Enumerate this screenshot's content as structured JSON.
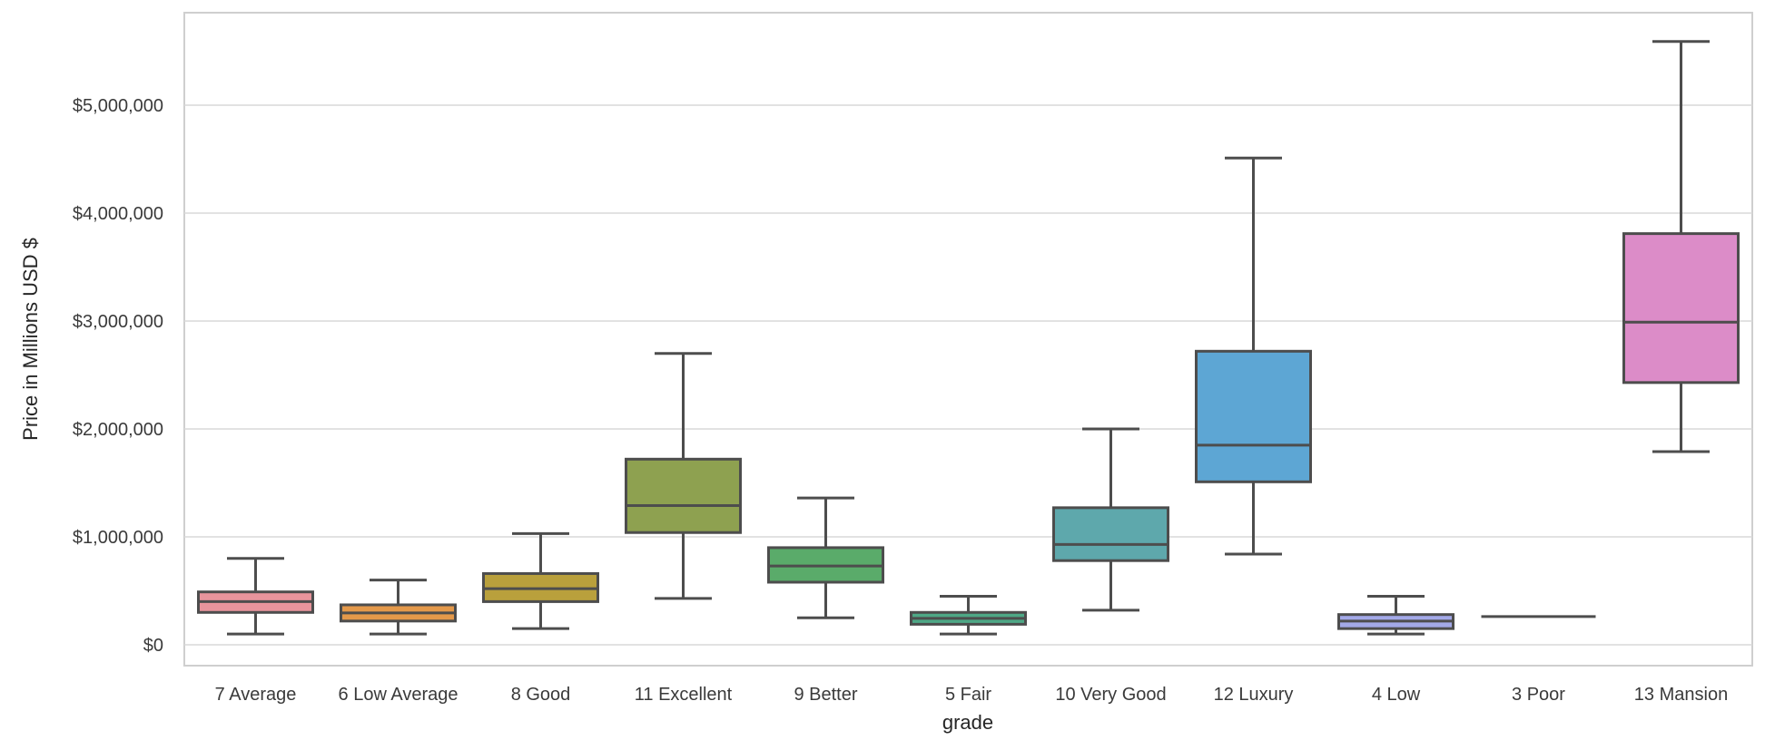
{
  "chart_data": {
    "type": "box",
    "title": "",
    "xlabel": "grade",
    "ylabel": "Price in Millions USD $",
    "ylim": [
      -200000,
      5850000
    ],
    "y_ticks": [
      0,
      1000000,
      2000000,
      3000000,
      4000000,
      5000000
    ],
    "y_tick_labels": [
      "$0",
      "$1,000,000",
      "$2,000,000",
      "$3,000,000",
      "$4,000,000",
      "$5,000,000"
    ],
    "grid": true,
    "legend": "none",
    "categories": [
      "7 Average",
      "6 Low Average",
      "8 Good",
      "11 Excellent",
      "9 Better",
      "5 Fair",
      "10 Very Good",
      "12 Luxury",
      "4 Low",
      "3 Poor",
      "13 Mansion"
    ],
    "boxes": [
      {
        "category": "7 Average",
        "whisker_low": 100000,
        "q1": 300000,
        "median": 400000,
        "q3": 490000,
        "whisker_high": 800000,
        "color": "#e8949c"
      },
      {
        "category": "6 Low Average",
        "whisker_low": 100000,
        "q1": 220000,
        "median": 295000,
        "q3": 370000,
        "whisker_high": 600000,
        "color": "#e4994a"
      },
      {
        "category": "8 Good",
        "whisker_low": 150000,
        "q1": 400000,
        "median": 520000,
        "q3": 660000,
        "whisker_high": 1030000,
        "color": "#b9a03c"
      },
      {
        "category": "11 Excellent",
        "whisker_low": 430000,
        "q1": 1040000,
        "median": 1290000,
        "q3": 1720000,
        "whisker_high": 2700000,
        "color": "#8ea150"
      },
      {
        "category": "9 Better",
        "whisker_low": 250000,
        "q1": 580000,
        "median": 730000,
        "q3": 900000,
        "whisker_high": 1360000,
        "color": "#5aab6a"
      },
      {
        "category": "5 Fair",
        "whisker_low": 100000,
        "q1": 190000,
        "median": 245000,
        "q3": 300000,
        "whisker_high": 450000,
        "color": "#4ea886"
      },
      {
        "category": "10 Very Good",
        "whisker_low": 320000,
        "q1": 780000,
        "median": 930000,
        "q3": 1270000,
        "whisker_high": 2000000,
        "color": "#5ea8ac"
      },
      {
        "category": "12 Luxury",
        "whisker_low": 840000,
        "q1": 1510000,
        "median": 1850000,
        "q3": 2720000,
        "whisker_high": 4510000,
        "color": "#5da6d4"
      },
      {
        "category": "4 Low",
        "whisker_low": 100000,
        "q1": 150000,
        "median": 220000,
        "q3": 280000,
        "whisker_high": 450000,
        "color": "#a3a9e8"
      },
      {
        "category": "3 Poor",
        "whisker_low": 262000,
        "q1": 262000,
        "median": 262000,
        "q3": 262000,
        "whisker_high": 262000,
        "color": "#c7a7e0"
      },
      {
        "category": "13 Mansion",
        "whisker_low": 1790000,
        "q1": 2430000,
        "median": 2990000,
        "q3": 3810000,
        "whisker_high": 5590000,
        "color": "#dc8cc8"
      }
    ]
  }
}
